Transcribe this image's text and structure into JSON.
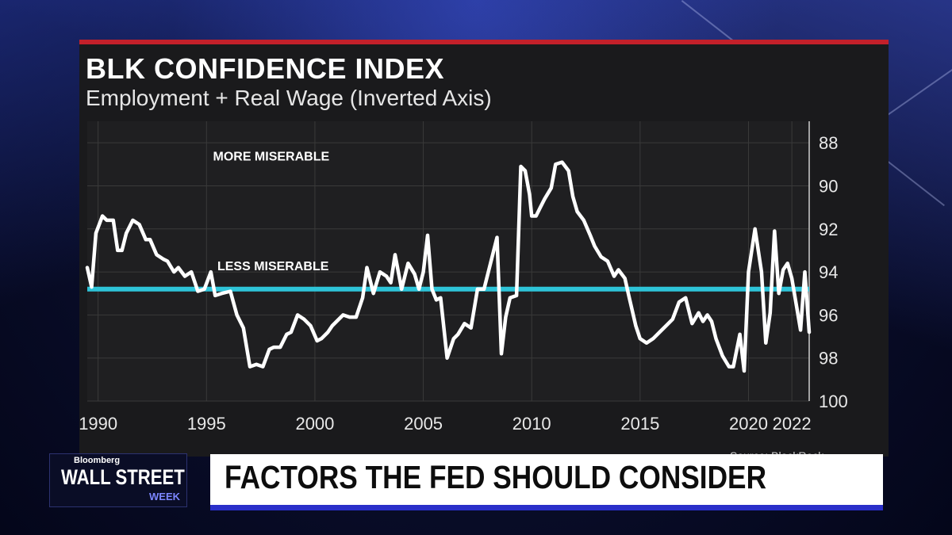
{
  "header": {
    "title": "BLK CONFIDENCE INDEX",
    "subtitle": "Employment + Real Wage (Inverted Axis)"
  },
  "source_text": "Source: BlackRock",
  "lower_third": {
    "headline": "FACTORS THE FED SHOULD CONSIDER"
  },
  "logo": {
    "brand": "Bloomberg",
    "main": "WALL STREET",
    "sub": "WEEK"
  },
  "colors": {
    "accent_red": "#c3202a",
    "line": "#ffffff",
    "reference_line": "#2ec4d8",
    "lower_third_bar": "#2a2fc9",
    "panel_bg": "#1a1a1c",
    "grid": "#3a3a3a"
  },
  "chart_data": {
    "type": "line",
    "title": "BLK CONFIDENCE INDEX",
    "subtitle": "Employment + Real Wage (Inverted Axis)",
    "xlabel": "",
    "ylabel": "",
    "y_inverted": true,
    "xlim": [
      1989.5,
      2022.8
    ],
    "ylim": [
      87,
      100
    ],
    "x_ticks": [
      1990,
      1995,
      2000,
      2005,
      2010,
      2015,
      2020,
      2022
    ],
    "x_tick_labels": [
      "1990",
      "1995",
      "2000",
      "2005",
      "2010",
      "2015",
      "2020",
      "2022"
    ],
    "y_ticks": [
      88,
      90,
      92,
      94,
      96,
      98,
      100
    ],
    "y_tick_labels": [
      "88",
      "90",
      "92",
      "94",
      "96",
      "98",
      "100"
    ],
    "y_axis_position": "right",
    "grid": true,
    "reference_line": {
      "y": 94.8
    },
    "annotations": [
      {
        "text": "MORE MISERABLE",
        "x": 1995.3,
        "y": 88.6
      },
      {
        "text": "LESS MISERABLE",
        "x": 1995.5,
        "y": 93.7
      }
    ],
    "series": [
      {
        "x": [
          1989.5,
          1989.7,
          1989.9,
          1990.2,
          1990.4,
          1990.7,
          1990.9,
          1991.1,
          1991.3,
          1991.6,
          1991.9,
          1992.2,
          1992.4,
          1992.7,
          1993.0,
          1993.2,
          1993.5,
          1993.7,
          1994.0,
          1994.3,
          1994.6,
          1994.9,
          1995.2,
          1995.4,
          1995.7,
          1996.1,
          1996.4,
          1996.7,
          1997.0,
          1997.3,
          1997.6,
          1997.9,
          1998.1,
          1998.4,
          1998.7,
          1998.9,
          1999.2,
          1999.5,
          1999.8,
          2000.1,
          2000.3,
          2000.6,
          2000.8,
          2001.0,
          2001.3,
          2001.6,
          2001.9,
          2002.2,
          2002.4,
          2002.7,
          2003.0,
          2003.3,
          2003.5,
          2003.7,
          2004.0,
          2004.3,
          2004.6,
          2004.8,
          2005.0,
          2005.2,
          2005.4,
          2005.6,
          2005.8,
          2006.1,
          2006.4,
          2006.6,
          2006.9,
          2007.2,
          2007.5,
          2007.8,
          2008.1,
          2008.4,
          2008.6,
          2008.8,
          2009.0,
          2009.3,
          2009.5,
          2009.7,
          2009.9,
          2010.0,
          2010.2,
          2010.4,
          2010.6,
          2010.9,
          2011.1,
          2011.4,
          2011.7,
          2011.9,
          2012.1,
          2012.4,
          2012.7,
          2012.9,
          2013.2,
          2013.5,
          2013.8,
          2014.0,
          2014.3,
          2014.5,
          2014.8,
          2015.0,
          2015.3,
          2015.6,
          2015.9,
          2016.2,
          2016.5,
          2016.8,
          2017.1,
          2017.4,
          2017.7,
          2017.9,
          2018.1,
          2018.3,
          2018.5,
          2018.8,
          2019.1,
          2019.3,
          2019.6,
          2019.8,
          2020.0,
          2020.3,
          2020.6,
          2020.8,
          2021.0,
          2021.2,
          2021.4,
          2021.6,
          2021.8,
          2022.0,
          2022.2,
          2022.4,
          2022.6,
          2022.8
        ],
        "y": [
          93.8,
          94.7,
          92.2,
          91.4,
          91.6,
          91.6,
          93.0,
          93.0,
          92.2,
          91.6,
          91.8,
          92.5,
          92.5,
          93.2,
          93.4,
          93.5,
          94.0,
          93.8,
          94.2,
          94.0,
          94.9,
          94.8,
          94.0,
          95.1,
          95.0,
          94.9,
          96.0,
          96.6,
          98.4,
          98.3,
          98.4,
          97.6,
          97.5,
          97.5,
          96.9,
          96.8,
          96.0,
          96.2,
          96.5,
          97.2,
          97.1,
          96.8,
          96.5,
          96.3,
          96.0,
          96.1,
          96.1,
          95.2,
          93.8,
          95.0,
          94.0,
          94.2,
          94.5,
          93.2,
          94.8,
          93.6,
          94.1,
          94.8,
          94.0,
          92.3,
          94.8,
          95.3,
          95.2,
          98.0,
          97.1,
          96.9,
          96.4,
          96.6,
          94.8,
          94.8,
          93.6,
          92.4,
          97.8,
          96.1,
          95.2,
          95.1,
          89.1,
          89.3,
          90.4,
          91.4,
          91.4,
          91.0,
          90.6,
          90.1,
          89.0,
          88.9,
          89.3,
          90.5,
          91.2,
          91.6,
          92.3,
          92.8,
          93.3,
          93.5,
          94.2,
          93.9,
          94.3,
          95.2,
          96.5,
          97.1,
          97.3,
          97.1,
          96.8,
          96.5,
          96.2,
          95.4,
          95.2,
          96.4,
          95.9,
          96.3,
          96.0,
          96.3,
          97.1,
          97.9,
          98.4,
          98.4,
          96.9,
          98.6,
          94.0,
          92.0,
          94.0,
          97.3,
          95.9,
          92.1,
          95.0,
          93.9,
          93.6,
          94.3,
          95.5,
          96.7,
          94.0,
          96.8
        ],
        "color": "#ffffff"
      }
    ]
  }
}
